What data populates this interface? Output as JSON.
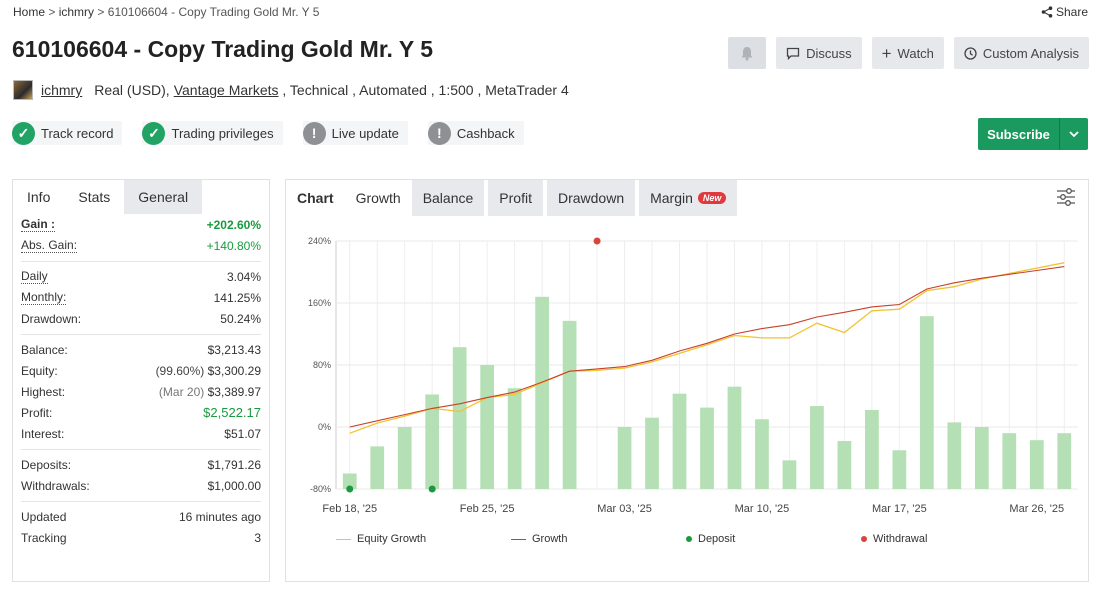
{
  "breadcrumb": {
    "home": "Home",
    "sep": ">",
    "user": "ichmry",
    "current": "610106604 - Copy Trading Gold Mr. Y 5"
  },
  "share_label": "Share",
  "title": "610106604 - Copy Trading Gold Mr. Y 5",
  "actions": {
    "discuss": "Discuss",
    "watch": "Watch",
    "custom": "Custom Analysis"
  },
  "meta": {
    "user": "ichmry",
    "account": "Real (USD),",
    "broker": "Vantage Markets",
    "rest": " , Technical , Automated , 1:500 , MetaTrader 4"
  },
  "badges": [
    {
      "label": "Track record",
      "status": "ok"
    },
    {
      "label": "Trading privileges",
      "status": "ok"
    },
    {
      "label": "Live update",
      "status": "warn"
    },
    {
      "label": "Cashback",
      "status": "warn"
    }
  ],
  "subscribe_label": "Subscribe",
  "left_tabs": [
    "Info",
    "Stats",
    "General"
  ],
  "stats": {
    "gain": {
      "k": "Gain :",
      "v": "+202.60%"
    },
    "abs_gain": {
      "k": "Abs. Gain:",
      "v": "+140.80%"
    },
    "daily": {
      "k": "Daily",
      "v": "3.04%"
    },
    "monthly": {
      "k": "Monthly:",
      "v": "141.25%"
    },
    "drawdown": {
      "k": "Drawdown:",
      "v": "50.24%"
    },
    "balance": {
      "k": "Balance:",
      "v": "$3,213.43"
    },
    "equity": {
      "k": "Equity:",
      "pre": "(99.60%)",
      "v": "$3,300.29"
    },
    "highest": {
      "k": "Highest:",
      "pre": "(Mar 20)",
      "v": "$3,389.97"
    },
    "profit": {
      "k": "Profit:",
      "v": "$2,522.17"
    },
    "interest": {
      "k": "Interest:",
      "v": "$51.07"
    },
    "deposits": {
      "k": "Deposits:",
      "v": "$1,791.26"
    },
    "withdrawals": {
      "k": "Withdrawals:",
      "v": "$1,000.00"
    },
    "updated": {
      "k": "Updated",
      "v": "16 minutes ago"
    },
    "tracking": {
      "k": "Tracking",
      "v": "3"
    }
  },
  "right_tabs": {
    "chart": "Chart",
    "growth": "Growth",
    "balance": "Balance",
    "profit": "Profit",
    "drawdown": "Drawdown",
    "margin": "Margin",
    "new": "New"
  },
  "colors": {
    "equity": "#f2c230",
    "growth": "#c8402b",
    "bars": "#b5dfb5",
    "deposit": "#1a9a3e",
    "withdrawal": "#d9443b"
  },
  "chart_data": {
    "type": "bar+line",
    "y_ticks": [
      "240%",
      "160%",
      "80%",
      "0%",
      "-80%"
    ],
    "ylim": [
      -80,
      240
    ],
    "x_ticks": [
      {
        "label": "Feb 18, '25",
        "index": 0
      },
      {
        "label": "Feb 25, '25",
        "index": 5
      },
      {
        "label": "Mar 03, '25",
        "index": 10
      },
      {
        "label": "Mar 10, '25",
        "index": 15
      },
      {
        "label": "Mar 17, '25",
        "index": 20
      },
      {
        "label": "Mar 26, '25",
        "index": 25
      }
    ],
    "bars": [
      -60,
      -25,
      0,
      42,
      103,
      80,
      50,
      168,
      137,
      null,
      0,
      12,
      43,
      25,
      52,
      10,
      -43,
      27,
      -18,
      22,
      -30,
      143,
      6,
      0,
      -8,
      -17,
      -8
    ],
    "equity_growth": [
      -8,
      5,
      14,
      24,
      20,
      38,
      42,
      57,
      72,
      73,
      76,
      84,
      95,
      106,
      118,
      115,
      115,
      134,
      122,
      150,
      152,
      176,
      181,
      191,
      198,
      205,
      212
    ],
    "growth": [
      0,
      8,
      16,
      24,
      30,
      38,
      45,
      58,
      72,
      75,
      78,
      86,
      98,
      108,
      120,
      127,
      132,
      142,
      148,
      155,
      158,
      178,
      186,
      192,
      197,
      202,
      207
    ],
    "deposits": [
      0,
      3
    ],
    "withdrawals": [
      {
        "index": 9,
        "y": 240
      }
    ],
    "legend": [
      "Equity Growth",
      "Growth",
      "Deposit",
      "Withdrawal"
    ]
  }
}
